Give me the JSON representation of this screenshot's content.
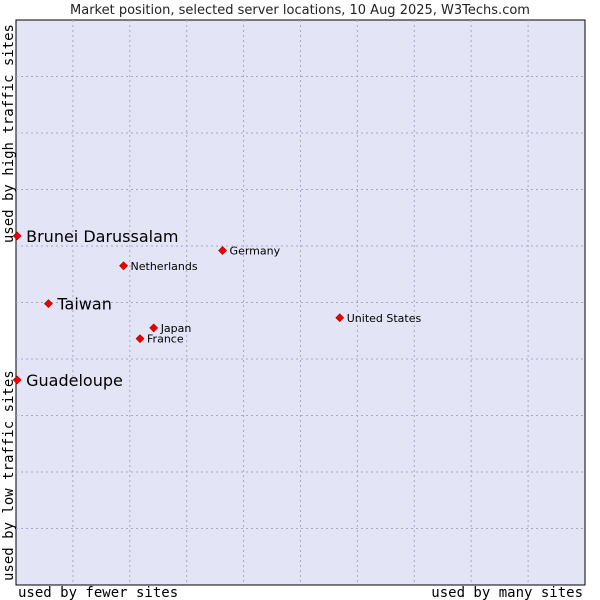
{
  "chart_data": {
    "type": "scatter",
    "title": "Market position, selected server locations, 10 Aug 2025, W3Techs.com",
    "xlabel_low": "used by fewer sites",
    "xlabel_high": "used by many sites",
    "ylabel_low": "used by low traffic sites",
    "ylabel_high": "used by high traffic sites",
    "xlim": [
      0,
      100
    ],
    "ylim": [
      0,
      100
    ],
    "grid": true,
    "colors": {
      "background": "#e3e5f7",
      "grid": "#a8a8c8",
      "point": "#ee0000"
    },
    "points": [
      {
        "name": "Brunei Darussalam",
        "x": 0.2,
        "y": 61.8,
        "highlight": true
      },
      {
        "name": "Taiwan",
        "x": 5.7,
        "y": 49.8,
        "highlight": true
      },
      {
        "name": "Guadeloupe",
        "x": 0.2,
        "y": 36.3,
        "highlight": true
      },
      {
        "name": "Germany",
        "x": 36.3,
        "y": 59.2,
        "highlight": false
      },
      {
        "name": "Netherlands",
        "x": 18.9,
        "y": 56.5,
        "highlight": false
      },
      {
        "name": "Japan",
        "x": 24.2,
        "y": 45.5,
        "highlight": false
      },
      {
        "name": "France",
        "x": 21.8,
        "y": 43.6,
        "highlight": false
      },
      {
        "name": "United States",
        "x": 56.9,
        "y": 47.3,
        "highlight": false
      }
    ]
  }
}
